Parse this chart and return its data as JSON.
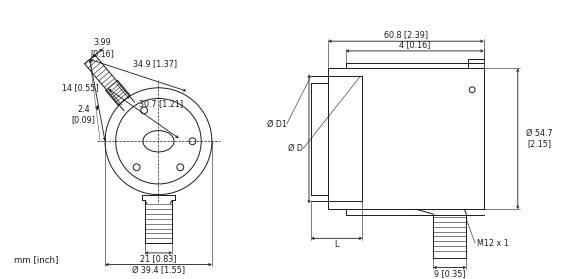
{
  "bg_color": "#ffffff",
  "line_color": "#1a1a1a",
  "footnote": "mm [inch]",
  "dims_left": {
    "top_center": "3.99\n[0.16]",
    "top_left": "14 [0.55]",
    "top_right": "34.9 [1.37]",
    "mid": "30.7 [1.21]",
    "left": "2.4\n[0.09]",
    "bottom_width": "21 [0.83]",
    "bottom_dia": "Ø 39.4 [1.55]"
  },
  "dims_right": {
    "top_width": "60.8 [2.39]",
    "top_sub": "4 [0.16]",
    "left_d1": "Ø D1",
    "left_d": "Ø D",
    "bottom_l": "L",
    "bottom_m12": "M12 x 1",
    "bottom_9": "9 [0.35]",
    "right_dia": "Ø 54.7\n[2.15]"
  }
}
